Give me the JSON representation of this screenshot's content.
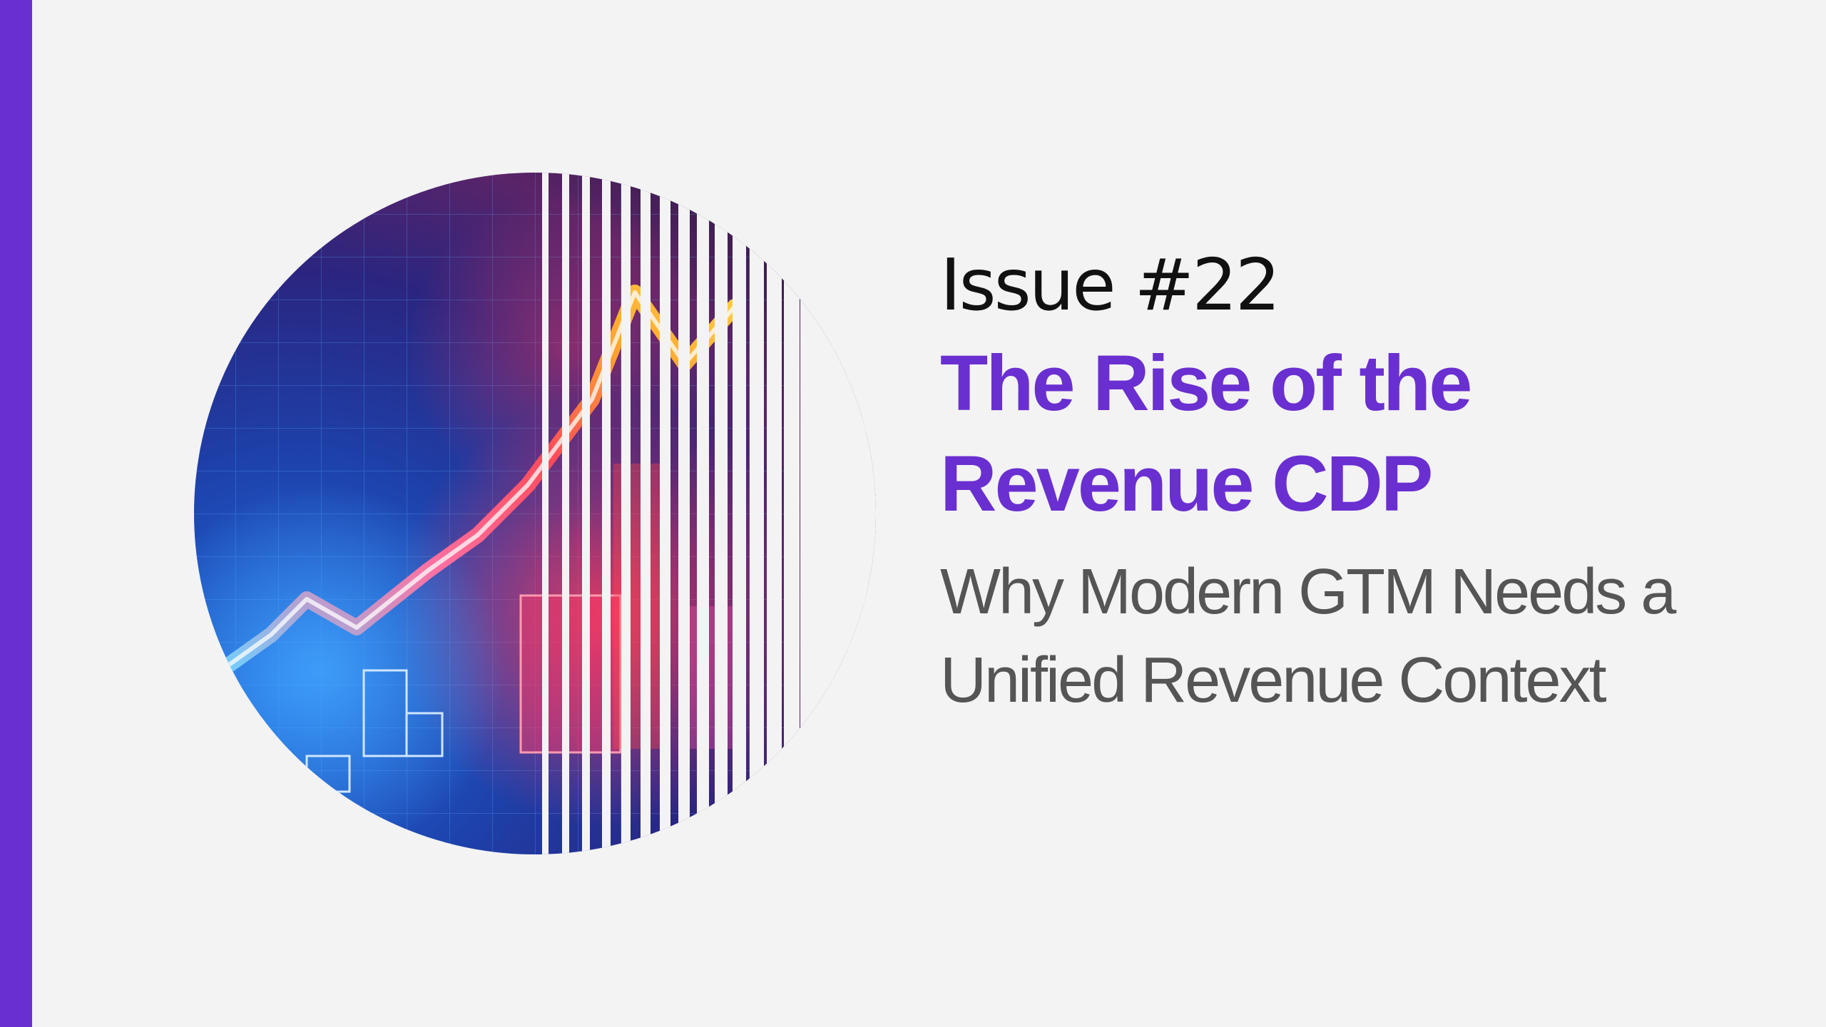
{
  "issue_label": "Issue #22",
  "headline": {
    "line1": "The Rise of the",
    "line2": "Revenue CDP"
  },
  "subtitle": {
    "line1": "Why Modern GTM Needs a",
    "line2": "Unified Revenue Context"
  },
  "colors": {
    "accent": "#6a2fd0",
    "background": "#f3f3f3",
    "issue_text": "#111111",
    "subtitle_text": "#555555"
  },
  "graphic": {
    "icon": "rising-revenue-chart-image",
    "overlay": "vertical-stripes"
  }
}
